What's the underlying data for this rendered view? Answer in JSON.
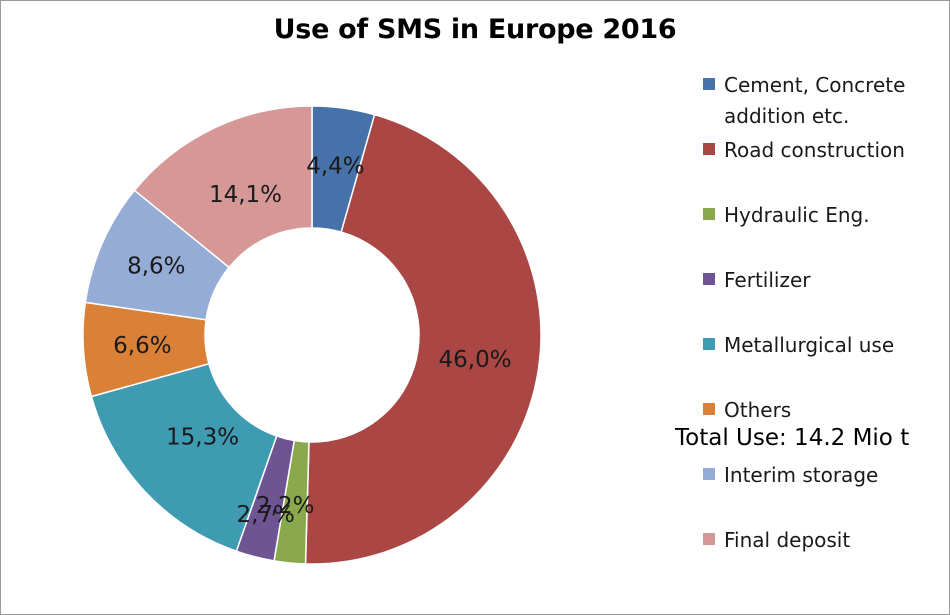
{
  "chart_data": {
    "type": "pie",
    "title": "Use of SMS in Europe 2016",
    "categories": [
      "Cement, Concrete addition etc.",
      "Road construction",
      "Hydraulic Eng.",
      "Fertilizer",
      "Metallurgical use",
      "Others",
      "Interim storage",
      "Final deposit"
    ],
    "values": [
      4.4,
      46.0,
      2.2,
      2.7,
      15.3,
      6.6,
      8.6,
      14.1
    ],
    "value_labels": [
      "4,4%",
      "46,0%",
      "2,2%",
      "2,7%",
      "15,3%",
      "6,6%",
      "8,6%",
      "14,1%"
    ],
    "colors": [
      "#4672a9",
      "#aa4644",
      "#8aa94d",
      "#6f5493",
      "#3e9bb1",
      "#da8137",
      "#94acd6",
      "#d69896"
    ],
    "donut": true,
    "legend_position": "right",
    "annotation": "Total Use: 14.2 Mio t"
  }
}
